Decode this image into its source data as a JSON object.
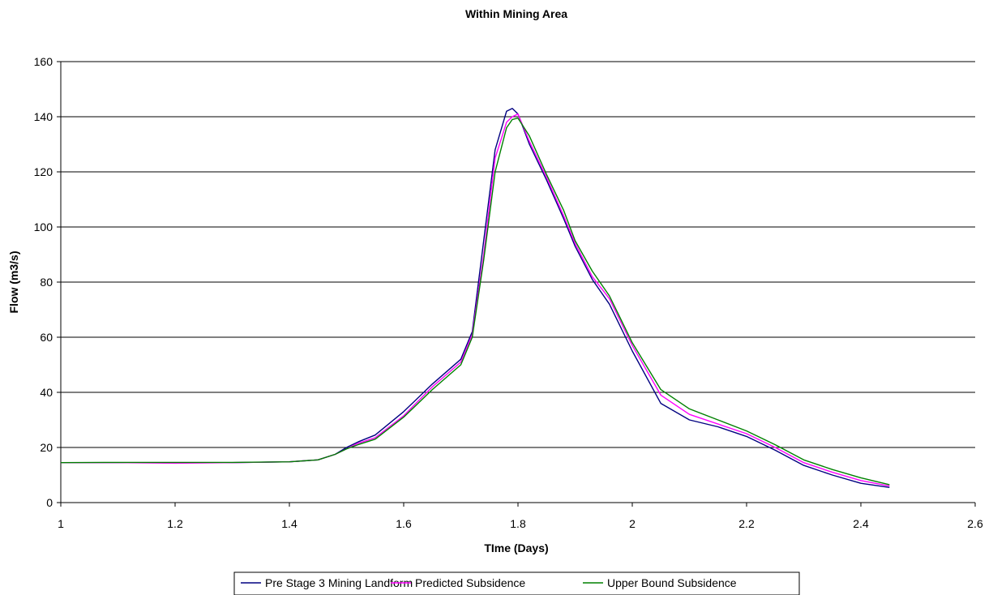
{
  "chart_data": {
    "type": "line",
    "title": "Within Mining Area",
    "xlabel": "TIme (Days)",
    "ylabel": "Flow (m3/s)",
    "xlim": [
      1,
      2.6
    ],
    "ylim": [
      0,
      160
    ],
    "xticks": [
      "1",
      "1.2",
      "1.4",
      "1.6",
      "1.8",
      "2",
      "2.2",
      "2.4",
      "2.6"
    ],
    "yticks": [
      "0",
      "20",
      "40",
      "60",
      "80",
      "100",
      "120",
      "140",
      "160"
    ],
    "grid": "horizontal",
    "legend_position": "bottom",
    "series": [
      {
        "name": "Pre Stage 3 Mining Landform",
        "color": "#000080",
        "x": [
          1.0,
          1.1,
          1.2,
          1.3,
          1.4,
          1.45,
          1.48,
          1.5,
          1.52,
          1.55,
          1.6,
          1.65,
          1.7,
          1.72,
          1.74,
          1.76,
          1.78,
          1.79,
          1.8,
          1.82,
          1.85,
          1.88,
          1.9,
          1.93,
          1.96,
          2.0,
          2.05,
          2.1,
          2.15,
          2.2,
          2.25,
          2.3,
          2.35,
          2.4,
          2.45
        ],
        "y": [
          14.5,
          14.5,
          14.5,
          14.5,
          14.8,
          15.5,
          17.5,
          20,
          22,
          24.5,
          33,
          43,
          52,
          62,
          95,
          128,
          142,
          143,
          141,
          130,
          117,
          103,
          93,
          81,
          72,
          55,
          36,
          30,
          27.5,
          24,
          19,
          13.5,
          10,
          7,
          5.5
        ]
      },
      {
        "name": "Predicted Subsidence",
        "color": "#ff00ff",
        "x": [
          1.0,
          1.1,
          1.2,
          1.3,
          1.4,
          1.45,
          1.48,
          1.5,
          1.52,
          1.55,
          1.6,
          1.65,
          1.7,
          1.72,
          1.74,
          1.76,
          1.78,
          1.79,
          1.8,
          1.82,
          1.85,
          1.88,
          1.9,
          1.93,
          1.96,
          2.0,
          2.05,
          2.1,
          2.15,
          2.2,
          2.25,
          2.3,
          2.35,
          2.4,
          2.45
        ],
        "y": [
          14.5,
          14.5,
          14.3,
          14.5,
          14.8,
          15.5,
          17.5,
          19.5,
          21.5,
          23.5,
          31.5,
          42,
          51,
          61,
          90,
          125,
          138,
          140,
          141,
          131,
          118,
          104,
          94,
          82,
          74,
          57,
          39,
          32,
          28.5,
          25,
          20,
          14.5,
          11,
          8,
          6
        ]
      },
      {
        "name": "Upper Bound Subsidence",
        "color": "#008000",
        "x": [
          1.0,
          1.1,
          1.2,
          1.3,
          1.4,
          1.45,
          1.48,
          1.5,
          1.52,
          1.55,
          1.6,
          1.65,
          1.7,
          1.72,
          1.74,
          1.76,
          1.78,
          1.79,
          1.8,
          1.82,
          1.85,
          1.88,
          1.9,
          1.93,
          1.96,
          2.0,
          2.05,
          2.1,
          2.15,
          2.2,
          2.25,
          2.3,
          2.35,
          2.4,
          2.45
        ],
        "y": [
          14.5,
          14.6,
          14.6,
          14.6,
          14.8,
          15.5,
          17.5,
          19.5,
          21,
          23,
          31,
          41,
          50,
          60,
          88,
          120,
          136,
          139,
          139.5,
          133,
          119,
          106,
          95,
          84,
          75,
          58,
          41,
          34,
          30,
          26,
          21,
          15.5,
          12,
          9,
          6.5
        ]
      }
    ]
  }
}
